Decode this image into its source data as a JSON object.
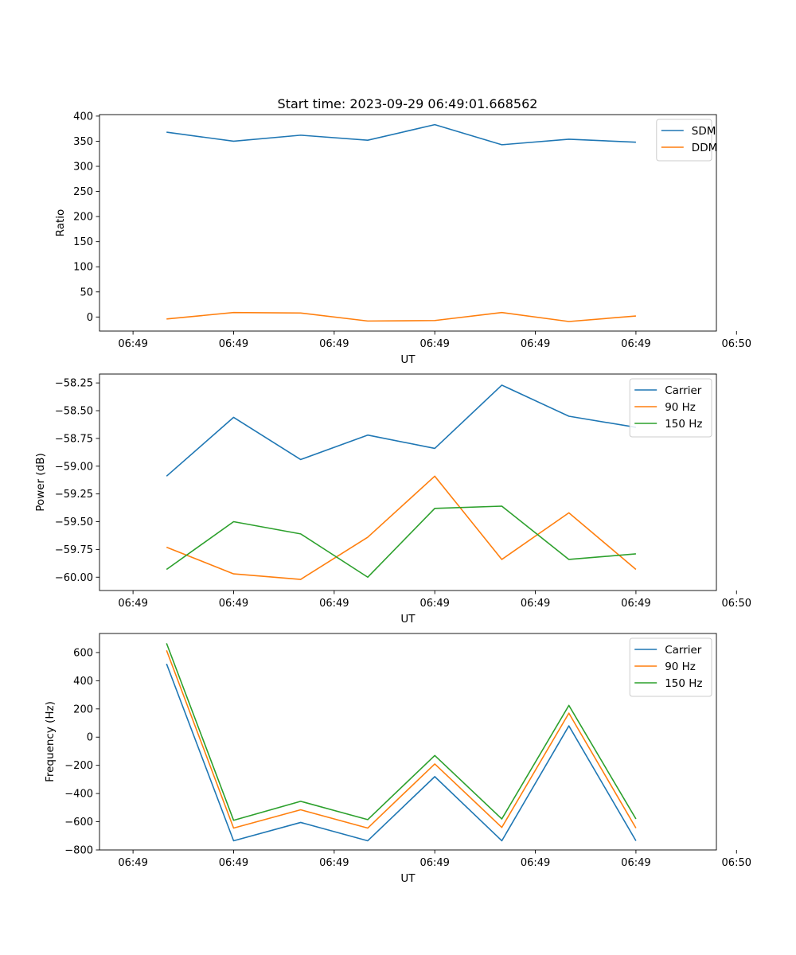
{
  "figure": {
    "title": "Start time: 2023-09-29 06:49:01.668562"
  },
  "colors": {
    "blue": "#1f77b4",
    "orange": "#ff7f0e",
    "green": "#2ca02c"
  },
  "chart_data": [
    {
      "type": "line",
      "title": "Start time: 2023-09-29 06:49:01.668562",
      "xlabel": "UT",
      "ylabel": "Ratio",
      "xlim": [
        -0.5,
        8.7
      ],
      "x": [
        0.5,
        1.5,
        2.5,
        3.5,
        4.5,
        5.5,
        6.5,
        7.5
      ],
      "xticks": [
        0,
        1.5,
        3,
        4.5,
        6,
        7.5,
        9
      ],
      "xtick_labels": [
        "06:49",
        "06:49",
        "06:49",
        "06:49",
        "06:49",
        "06:49",
        "06:50"
      ],
      "ylim": [
        -28,
        403
      ],
      "yticks": [
        0,
        50,
        100,
        150,
        200,
        250,
        300,
        350,
        400
      ],
      "ytick_labels": [
        "0",
        "50",
        "100",
        "150",
        "200",
        "250",
        "300",
        "350",
        "400"
      ],
      "legend": "top-right",
      "series": [
        {
          "name": "SDM",
          "color": "blue",
          "values": [
            368,
            350,
            362,
            352,
            383,
            343,
            354,
            348
          ]
        },
        {
          "name": "DDM",
          "color": "orange",
          "values": [
            -4,
            9,
            8,
            -8,
            -7,
            9,
            -9,
            2
          ]
        }
      ]
    },
    {
      "type": "line",
      "xlabel": "UT",
      "ylabel": "Power (dB)",
      "xlim": [
        -0.5,
        8.7
      ],
      "x": [
        0.5,
        1.5,
        2.5,
        3.5,
        4.5,
        5.5,
        6.5,
        7.5
      ],
      "xticks": [
        0,
        1.5,
        3,
        4.5,
        6,
        7.5,
        9
      ],
      "xtick_labels": [
        "06:49",
        "06:49",
        "06:49",
        "06:49",
        "06:49",
        "06:49",
        "06:50"
      ],
      "ylim": [
        -60.12,
        -58.17
      ],
      "yticks": [
        -60.0,
        -59.75,
        -59.5,
        -59.25,
        -59.0,
        -58.75,
        -58.5,
        -58.25
      ],
      "ytick_labels": [
        "−60.00",
        "−59.75",
        "−59.50",
        "−59.25",
        "−59.00",
        "−58.75",
        "−58.50",
        "−58.25"
      ],
      "legend": "top-right",
      "series": [
        {
          "name": "Carrier",
          "color": "blue",
          "values": [
            -59.09,
            -58.56,
            -58.94,
            -58.72,
            -58.84,
            -58.27,
            -58.55,
            -58.65
          ]
        },
        {
          "name": "90 Hz",
          "color": "orange",
          "values": [
            -59.73,
            -59.97,
            -60.02,
            -59.64,
            -59.09,
            -59.84,
            -59.42,
            -59.93
          ]
        },
        {
          "name": "150 Hz",
          "color": "green",
          "values": [
            -59.93,
            -59.5,
            -59.61,
            -60.0,
            -59.38,
            -59.36,
            -59.84,
            -59.79
          ]
        }
      ]
    },
    {
      "type": "line",
      "xlabel": "UT",
      "ylabel": "Frequency (Hz)",
      "xlim": [
        -0.5,
        8.7
      ],
      "x": [
        0.5,
        1.5,
        2.5,
        3.5,
        4.5,
        5.5,
        6.5,
        7.5
      ],
      "xticks": [
        0,
        1.5,
        3,
        4.5,
        6,
        7.5,
        9
      ],
      "xtick_labels": [
        "06:49",
        "06:49",
        "06:49",
        "06:49",
        "06:49",
        "06:49",
        "06:50"
      ],
      "ylim": [
        -800,
        735
      ],
      "yticks": [
        -800,
        -600,
        -400,
        -200,
        0,
        200,
        400,
        600
      ],
      "ytick_labels": [
        "−800",
        "−600",
        "−400",
        "−200",
        "0",
        "200",
        "400",
        "600"
      ],
      "legend": "top-right",
      "series": [
        {
          "name": "Carrier",
          "color": "blue",
          "values": [
            520,
            -735,
            -605,
            -735,
            -280,
            -735,
            80,
            -735
          ]
        },
        {
          "name": "90 Hz",
          "color": "orange",
          "values": [
            615,
            -645,
            -515,
            -645,
            -190,
            -640,
            170,
            -645
          ]
        },
        {
          "name": "150 Hz",
          "color": "green",
          "values": [
            665,
            -590,
            -455,
            -585,
            -130,
            -580,
            225,
            -580
          ]
        }
      ]
    }
  ]
}
